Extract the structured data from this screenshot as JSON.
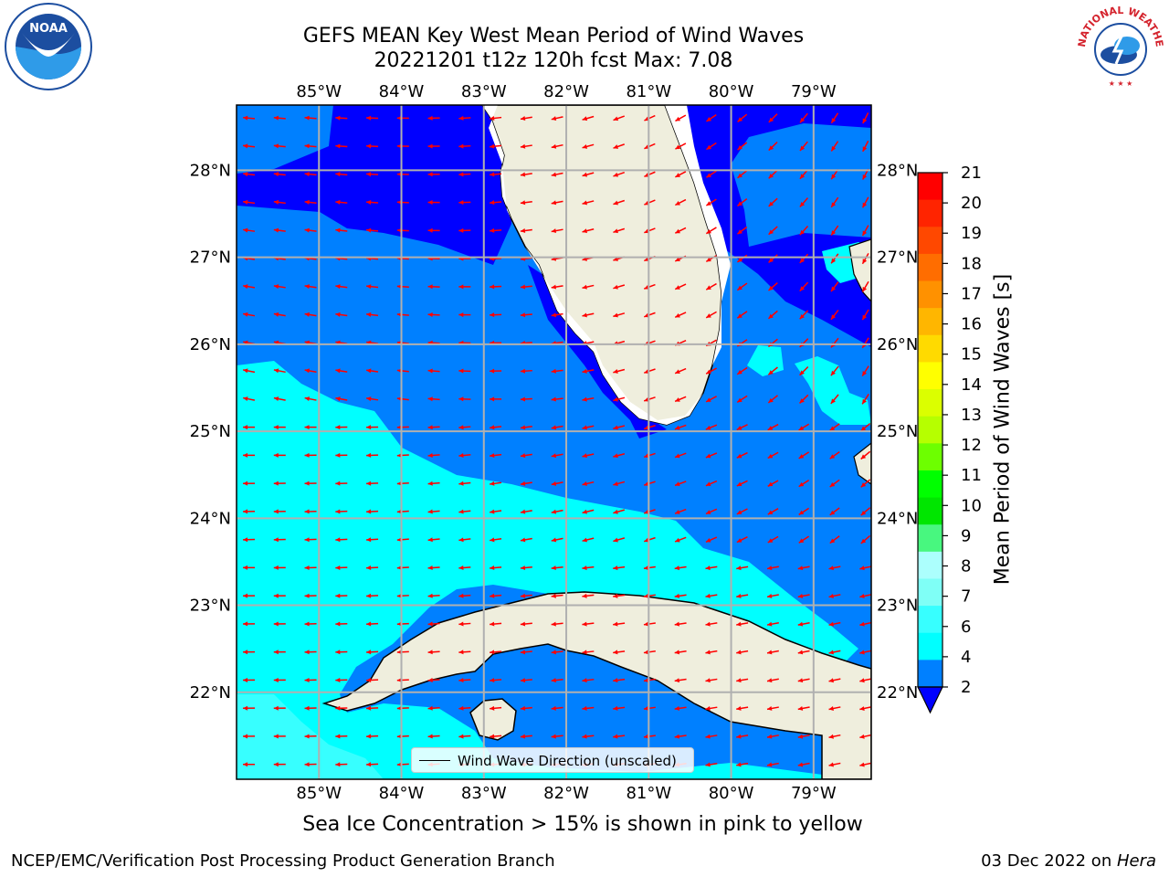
{
  "title": {
    "line1": "GEFS MEAN Key West Mean Period of Wind Waves",
    "line2": "20221201 t12z 120h fcst   Max: 7.08"
  },
  "map": {
    "lon_labels": [
      "85°W",
      "84°W",
      "83°W",
      "82°W",
      "81°W",
      "80°W",
      "79°W"
    ],
    "lat_labels": [
      "28°N",
      "27°N",
      "26°N",
      "25°N",
      "24°N",
      "23°N",
      "22°N"
    ],
    "lon_range": [
      -86.0,
      -78.3
    ],
    "lat_range": [
      21.0,
      28.75
    ],
    "gridlines": true,
    "arrow_color": "#ff0000",
    "land_color": "#efeedd",
    "legend_entry": "Wind Wave Direction (unscaled)"
  },
  "colorbar": {
    "label": "Mean Period of Wind Waves [s]",
    "tick_labels": [
      "21",
      "20",
      "19",
      "18",
      "17",
      "16",
      "15",
      "14",
      "13",
      "12",
      "11",
      "10",
      "9",
      "8",
      "7",
      "6",
      "4",
      "2"
    ],
    "colors": [
      "#ff0000",
      "#ff2400",
      "#ff4800",
      "#ff6d00",
      "#ff9100",
      "#ffb600",
      "#ffda00",
      "#ffff00",
      "#dbff00",
      "#b6ff00",
      "#6dff00",
      "#00ff00",
      "#00e600",
      "#48f77f",
      "#acfffd",
      "#7ffff6",
      "#37ffff",
      "#00ffff",
      "#0080ff"
    ],
    "under_color": "#0000ff"
  },
  "note": "Sea Ice Concentration > 15% is shown in pink to yellow",
  "footer": {
    "left": "NCEP/EMC/Verification Post Processing Product Generation Branch",
    "right_prefix": "03 Dec 2022 on ",
    "right_machine": "Hera"
  },
  "logos": {
    "noaa_text": "NOAA",
    "nws_text": "NATIONAL WEATHER SERVICE"
  }
}
